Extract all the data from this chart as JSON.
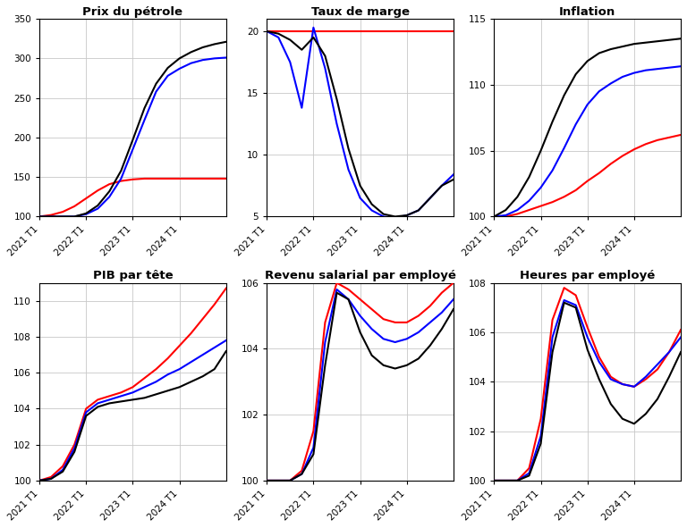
{
  "titles": [
    "Prix du pétrole",
    "Taux de marge",
    "Inflation",
    "PIB par tête",
    "Revenu salarial par employé",
    "Heures par employé"
  ],
  "xtick_labels": [
    "2021 T1",
    "2022 T1",
    "2023 T1",
    "2024 T1"
  ],
  "colors": {
    "red": "#FF0000",
    "blue": "#0000FF",
    "black": "#000000"
  },
  "panels": [
    {
      "title": "Prix du pétrole",
      "ylim": [
        100,
        350
      ],
      "yticks": [
        100,
        150,
        200,
        250,
        300,
        350
      ],
      "x": [
        0,
        1,
        2,
        3,
        4,
        5,
        6,
        7,
        8,
        9,
        10,
        11,
        12,
        13,
        14,
        15,
        16
      ],
      "red": [
        100,
        102,
        106,
        113,
        123,
        133,
        141,
        145,
        147,
        148,
        148,
        148,
        148,
        148,
        148,
        148,
        148
      ],
      "blue": [
        100,
        100,
        100,
        100,
        103,
        110,
        125,
        148,
        185,
        222,
        258,
        278,
        287,
        294,
        298,
        300,
        301
      ],
      "black": [
        100,
        100,
        100,
        100,
        104,
        114,
        132,
        158,
        197,
        237,
        268,
        288,
        300,
        308,
        314,
        318,
        321
      ]
    },
    {
      "title": "Taux de marge",
      "ylim": [
        5,
        21
      ],
      "yticks": [
        5,
        10,
        15,
        20
      ],
      "x": [
        0,
        1,
        2,
        3,
        4,
        5,
        6,
        7,
        8,
        9,
        10,
        11,
        12,
        13,
        14,
        15,
        16
      ],
      "red": [
        20,
        20,
        20,
        20,
        20,
        20,
        20,
        20,
        20,
        20,
        20,
        20,
        20,
        20,
        20,
        20,
        20
      ],
      "blue": [
        20,
        19.5,
        17.5,
        13.8,
        20.3,
        17.0,
        12.5,
        8.8,
        6.5,
        5.5,
        5.0,
        4.9,
        5.1,
        5.5,
        6.5,
        7.5,
        8.4
      ],
      "black": [
        20,
        19.8,
        19.3,
        18.5,
        19.5,
        18.0,
        14.5,
        10.5,
        7.5,
        6.0,
        5.2,
        5.0,
        5.1,
        5.5,
        6.5,
        7.5,
        8.0
      ]
    },
    {
      "title": "Inflation",
      "ylim": [
        100,
        115
      ],
      "yticks": [
        100,
        105,
        110,
        115
      ],
      "x": [
        0,
        1,
        2,
        3,
        4,
        5,
        6,
        7,
        8,
        9,
        10,
        11,
        12,
        13,
        14,
        15,
        16
      ],
      "red": [
        100,
        100.0,
        100.2,
        100.5,
        100.8,
        101.1,
        101.5,
        102.0,
        102.7,
        103.3,
        104.0,
        104.6,
        105.1,
        105.5,
        105.8,
        106.0,
        106.2
      ],
      "blue": [
        100,
        100.1,
        100.5,
        101.2,
        102.2,
        103.5,
        105.2,
        107.0,
        108.5,
        109.5,
        110.1,
        110.6,
        110.9,
        111.1,
        111.2,
        111.3,
        111.4
      ],
      "black": [
        100,
        100.5,
        101.5,
        103.0,
        105.0,
        107.2,
        109.2,
        110.8,
        111.8,
        112.4,
        112.7,
        112.9,
        113.1,
        113.2,
        113.3,
        113.4,
        113.5
      ]
    },
    {
      "title": "PIB par tête",
      "ylim": [
        100,
        111
      ],
      "yticks": [
        100,
        102,
        104,
        106,
        108,
        110
      ],
      "x": [
        0,
        1,
        2,
        3,
        4,
        5,
        6,
        7,
        8,
        9,
        10,
        11,
        12,
        13,
        14,
        15,
        16
      ],
      "red": [
        100,
        100.2,
        100.8,
        102.0,
        104.0,
        104.5,
        104.7,
        104.9,
        105.2,
        105.7,
        106.2,
        106.8,
        107.5,
        108.2,
        109.0,
        109.8,
        110.7
      ],
      "blue": [
        100,
        100.1,
        100.6,
        101.8,
        103.8,
        104.3,
        104.5,
        104.7,
        104.9,
        105.2,
        105.5,
        105.9,
        106.2,
        106.6,
        107.0,
        107.4,
        107.8
      ],
      "black": [
        100,
        100.1,
        100.5,
        101.6,
        103.6,
        104.1,
        104.3,
        104.4,
        104.5,
        104.6,
        104.8,
        105.0,
        105.2,
        105.5,
        105.8,
        106.2,
        107.2
      ]
    },
    {
      "title": "Revenu salarial par employé",
      "ylim": [
        100,
        106
      ],
      "yticks": [
        100,
        102,
        104,
        106
      ],
      "x": [
        0,
        1,
        2,
        3,
        4,
        5,
        6,
        7,
        8,
        9,
        10,
        11,
        12,
        13,
        14,
        15,
        16
      ],
      "red": [
        100,
        100,
        100,
        100.3,
        101.5,
        104.8,
        106.0,
        105.8,
        105.5,
        105.2,
        104.9,
        104.8,
        104.8,
        105.0,
        105.3,
        105.7,
        106.0
      ],
      "blue": [
        100,
        100,
        100,
        100.2,
        101.0,
        104.2,
        105.8,
        105.5,
        105.0,
        104.6,
        104.3,
        104.2,
        104.3,
        104.5,
        104.8,
        105.1,
        105.5
      ],
      "black": [
        100,
        100,
        100,
        100.2,
        100.8,
        103.5,
        105.7,
        105.5,
        104.5,
        103.8,
        103.5,
        103.4,
        103.5,
        103.7,
        104.1,
        104.6,
        105.2
      ]
    },
    {
      "title": "Heures par employé",
      "ylim": [
        100,
        108
      ],
      "yticks": [
        100,
        102,
        104,
        106,
        108
      ],
      "x": [
        0,
        1,
        2,
        3,
        4,
        5,
        6,
        7,
        8,
        9,
        10,
        11,
        12,
        13,
        14,
        15,
        16
      ],
      "red": [
        100,
        100,
        100,
        100.5,
        102.5,
        106.5,
        107.8,
        107.5,
        106.2,
        105.0,
        104.2,
        103.9,
        103.8,
        104.1,
        104.5,
        105.2,
        106.1
      ],
      "blue": [
        100,
        100,
        100,
        100.3,
        101.8,
        105.8,
        107.3,
        107.1,
        105.8,
        104.8,
        104.1,
        103.9,
        103.8,
        104.2,
        104.7,
        105.2,
        105.8
      ],
      "black": [
        100,
        100,
        100,
        100.2,
        101.5,
        105.2,
        107.2,
        107.0,
        105.3,
        104.1,
        103.1,
        102.5,
        102.3,
        102.7,
        103.3,
        104.2,
        105.2
      ]
    }
  ],
  "figsize": [
    7.68,
    5.91
  ],
  "dpi": 100
}
